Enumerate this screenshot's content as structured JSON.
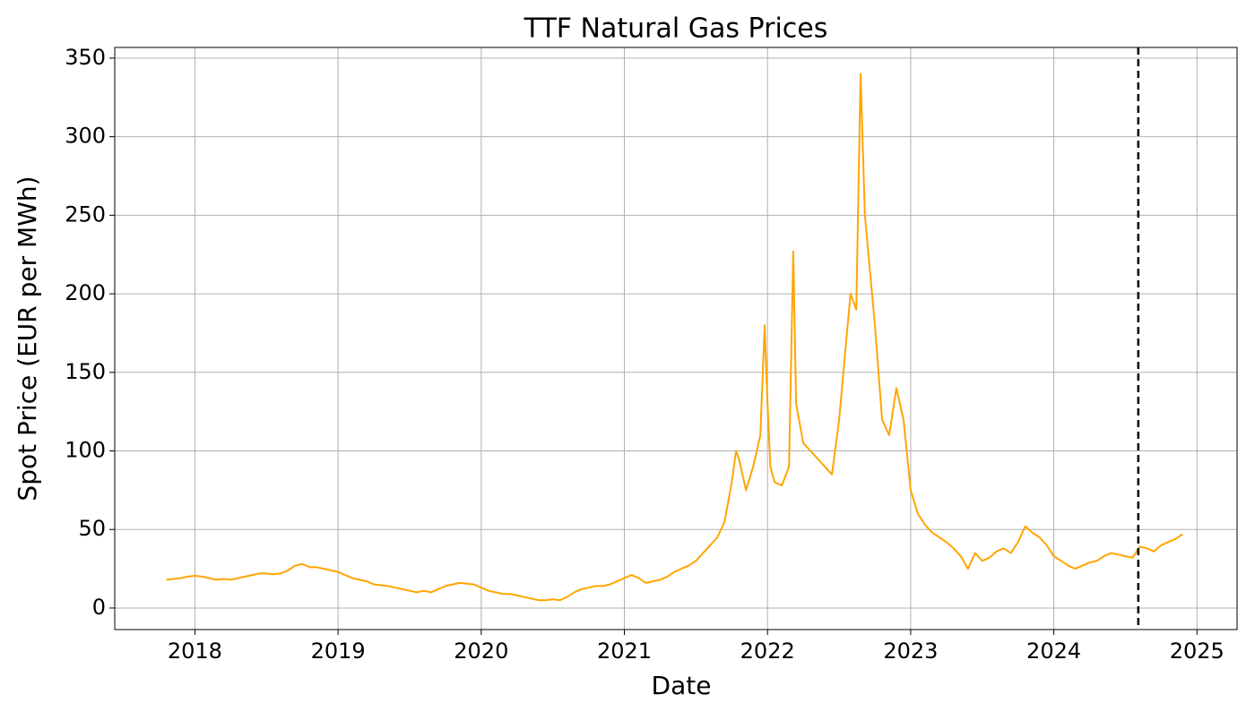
{
  "chart_data": {
    "type": "line",
    "title": "TTF Natural Gas Prices",
    "x_label": "Date",
    "y_label": "Spot Price (EUR per MWh)",
    "color": "#ffa500",
    "grid": true,
    "xlim": [
      2017.44,
      2025.28
    ],
    "xticks": [
      2018,
      2019,
      2020,
      2021,
      2022,
      2023,
      2024,
      2025
    ],
    "ylim": [
      -13.7,
      356.8
    ],
    "yticks": [
      0,
      50,
      100,
      150,
      200,
      250,
      300,
      350
    ],
    "vline": {
      "x": 2024.59,
      "color": "#000000",
      "style": "dashed"
    },
    "x": [
      2017.8,
      2017.85,
      2017.9,
      2017.95,
      2018.0,
      2018.05,
      2018.1,
      2018.15,
      2018.2,
      2018.25,
      2018.3,
      2018.35,
      2018.4,
      2018.45,
      2018.5,
      2018.55,
      2018.6,
      2018.65,
      2018.7,
      2018.75,
      2018.8,
      2018.85,
      2018.9,
      2018.95,
      2019.0,
      2019.05,
      2019.1,
      2019.15,
      2019.2,
      2019.25,
      2019.3,
      2019.35,
      2019.4,
      2019.45,
      2019.5,
      2019.55,
      2019.6,
      2019.65,
      2019.7,
      2019.75,
      2019.8,
      2019.85,
      2019.9,
      2019.95,
      2020.0,
      2020.05,
      2020.1,
      2020.15,
      2020.2,
      2020.25,
      2020.3,
      2020.35,
      2020.4,
      2020.45,
      2020.5,
      2020.55,
      2020.6,
      2020.65,
      2020.7,
      2020.75,
      2020.8,
      2020.85,
      2020.9,
      2020.95,
      2021.0,
      2021.05,
      2021.1,
      2021.15,
      2021.2,
      2021.25,
      2021.3,
      2021.35,
      2021.4,
      2021.45,
      2021.5,
      2021.55,
      2021.6,
      2021.65,
      2021.7,
      2021.75,
      2021.78,
      2021.8,
      2021.85,
      2021.9,
      2021.95,
      2021.98,
      2022.0,
      2022.02,
      2022.05,
      2022.1,
      2022.15,
      2022.18,
      2022.2,
      2022.25,
      2022.3,
      2022.35,
      2022.4,
      2022.45,
      2022.5,
      2022.55,
      2022.58,
      2022.62,
      2022.65,
      2022.68,
      2022.72,
      2022.75,
      2022.8,
      2022.85,
      2022.9,
      2022.95,
      2023.0,
      2023.05,
      2023.1,
      2023.15,
      2023.2,
      2023.25,
      2023.3,
      2023.35,
      2023.4,
      2023.45,
      2023.5,
      2023.55,
      2023.6,
      2023.65,
      2023.7,
      2023.75,
      2023.8,
      2023.85,
      2023.9,
      2023.95,
      2024.0,
      2024.05,
      2024.1,
      2024.15,
      2024.2,
      2024.25,
      2024.3,
      2024.35,
      2024.4,
      2024.45,
      2024.5,
      2024.55,
      2024.6,
      2024.65,
      2024.7,
      2024.75,
      2024.8,
      2024.85,
      2024.9
    ],
    "values": [
      18,
      18.5,
      19,
      20,
      20.5,
      20,
      19,
      18,
      18.5,
      18,
      19,
      20,
      21,
      22,
      22,
      21.5,
      22,
      24,
      27,
      28,
      26,
      26,
      25,
      24,
      23,
      21,
      19,
      18,
      17,
      15,
      14.5,
      14,
      13,
      12,
      11,
      10,
      11,
      10,
      12,
      14,
      15,
      16,
      15.5,
      15,
      13,
      11,
      10,
      9,
      9,
      8,
      7,
      6,
      5,
      5,
      5.5,
      5,
      7,
      10,
      12,
      13,
      14,
      14,
      15,
      17,
      19,
      21,
      19,
      16,
      17,
      18,
      20,
      23,
      25,
      27,
      30,
      35,
      40,
      45,
      55,
      80,
      100,
      95,
      75,
      90,
      110,
      180,
      130,
      90,
      80,
      78,
      90,
      227,
      130,
      105,
      100,
      95,
      90,
      85,
      120,
      170,
      200,
      190,
      340,
      250,
      210,
      180,
      120,
      110,
      140,
      120,
      75,
      60,
      53,
      48,
      45,
      42,
      38,
      33,
      25,
      35,
      30,
      32,
      36,
      38,
      35,
      42,
      52,
      48,
      45,
      40,
      33,
      30,
      27,
      25,
      27,
      29,
      30,
      33,
      35,
      34,
      33,
      32,
      39,
      38,
      36,
      40,
      42,
      44,
      47
    ]
  }
}
